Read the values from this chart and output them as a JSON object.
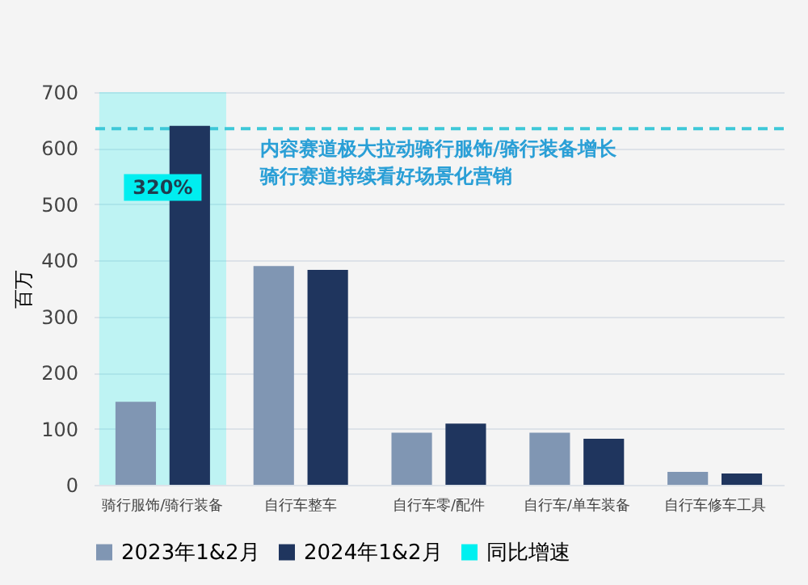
{
  "chart_data": {
    "type": "bar",
    "ylabel": "百万",
    "categories": [
      "骑行服饰/骑行装备",
      "自行车整车",
      "自行车零/配件",
      "自行车/单车装备",
      "自行车修车工具"
    ],
    "series": [
      {
        "name": "2023年1&2月",
        "color": "#8096b3",
        "values": [
          148,
          390,
          93,
          93,
          23
        ]
      },
      {
        "name": "2024年1&2月",
        "color": "#1f355e",
        "values": [
          640,
          383,
          109,
          82,
          20
        ]
      }
    ],
    "ylim": [
      0,
      700
    ],
    "yticks": [
      0,
      100,
      200,
      300,
      400,
      500,
      600,
      700
    ],
    "grid": "y",
    "legend": "bottom",
    "bands": [
      {
        "axis": "x",
        "from": "骑行服饰/骑行装备",
        "to": "骑行服饰/骑行装备",
        "label": "同比增速",
        "color": "#00f0f0"
      }
    ],
    "ref_lines": [
      {
        "axis": "y",
        "value": 635,
        "color": "#3ec8d8",
        "line_style": "dashed"
      }
    ],
    "annotations": [
      {
        "text": "320%",
        "x": "骑行服饰/骑行装备",
        "y": 530
      },
      "内容赛道极大拉动骑行服饰/骑行装备增长",
      "骑行赛道持续看好场景化营销"
    ]
  }
}
